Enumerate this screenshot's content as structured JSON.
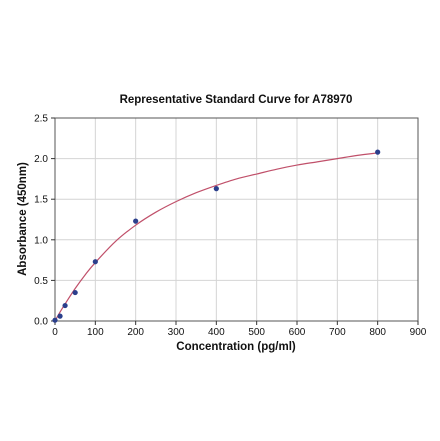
{
  "chart_data": {
    "type": "scatter",
    "title": "Representative Standard Curve for A78970",
    "xlabel": "Concentration (pg/ml)",
    "ylabel": "Absorbance (450nm)",
    "xlim": [
      0,
      900
    ],
    "ylim": [
      0,
      2.5
    ],
    "x_ticks": [
      0,
      100,
      200,
      300,
      400,
      500,
      600,
      700,
      800,
      900
    ],
    "y_ticks": [
      0.0,
      0.5,
      1.0,
      1.5,
      2.0,
      2.5
    ],
    "x_tick_labels": [
      "0",
      "100",
      "200",
      "300",
      "400",
      "500",
      "600",
      "700",
      "800",
      "900"
    ],
    "y_tick_labels": [
      "0.0",
      "0.5",
      "1.0",
      "1.5",
      "2.0",
      "2.5"
    ],
    "grid": true,
    "series": [
      {
        "x": [
          0,
          12.5,
          25,
          50,
          100,
          200,
          400,
          800
        ],
        "y": [
          0.01,
          0.06,
          0.19,
          0.35,
          0.73,
          1.23,
          1.63,
          2.08
        ],
        "color": "#2b3f8c"
      }
    ],
    "fit_curve": {
      "color": "#c0506a",
      "x": [
        0,
        12.5,
        25,
        50,
        75,
        100,
        150,
        200,
        250,
        300,
        350,
        400,
        450,
        500,
        550,
        600,
        650,
        700,
        750,
        800
      ],
      "y": [
        0.0,
        0.11,
        0.21,
        0.4,
        0.57,
        0.72,
        0.98,
        1.18,
        1.34,
        1.47,
        1.58,
        1.67,
        1.75,
        1.81,
        1.87,
        1.92,
        1.96,
        2.0,
        2.04,
        2.07
      ]
    }
  }
}
